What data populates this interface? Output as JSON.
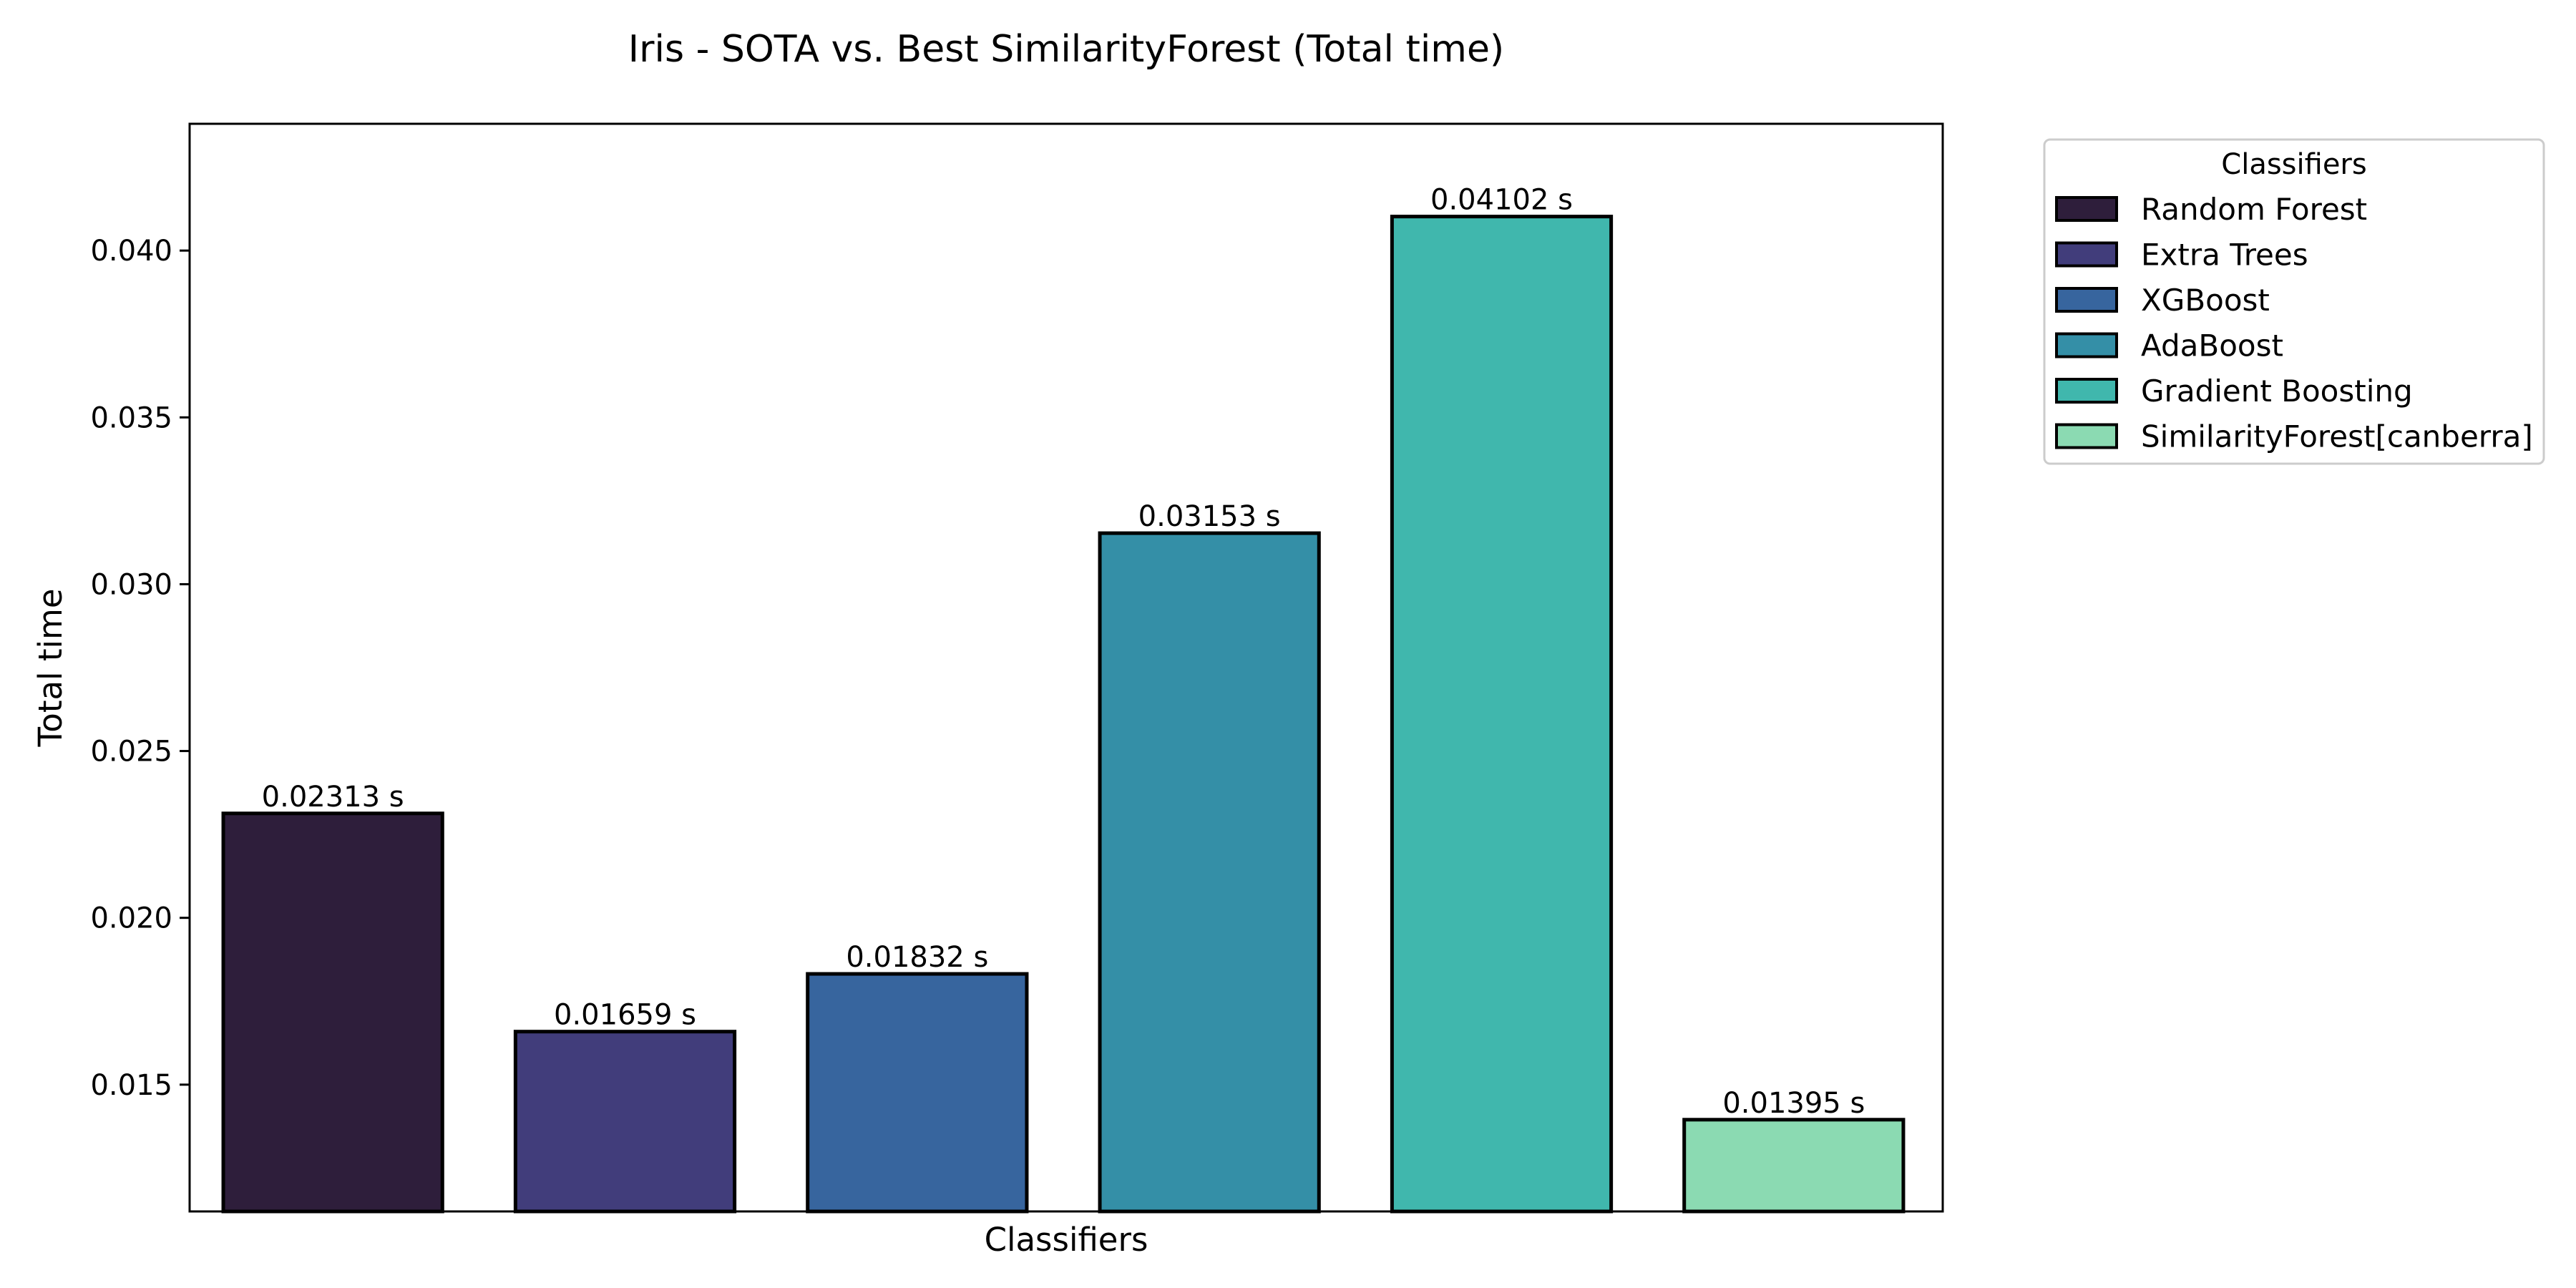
{
  "chart_data": {
    "type": "bar",
    "title": "Iris - SOTA vs. Best SimilarityForest (Total time)",
    "xlabel": "Classifiers",
    "ylabel": "Total time",
    "ylim": [
      0.0112,
      0.0438
    ],
    "yticks": [
      0.015,
      0.02,
      0.025,
      0.03,
      0.035,
      0.04
    ],
    "ytick_labels": [
      "0.015",
      "0.020",
      "0.025",
      "0.030",
      "0.035",
      "0.040"
    ],
    "grid": false,
    "categories": [
      "Random Forest",
      "Extra Trees",
      "XGBoost",
      "AdaBoost",
      "Gradient Boosting",
      "SimilarityForest[canberra]"
    ],
    "values": [
      0.02313,
      0.01659,
      0.01832,
      0.03153,
      0.04102,
      0.01395
    ],
    "data_labels": [
      "0.02313 s",
      "0.01659 s",
      "0.01832 s",
      "0.03153 s",
      "0.04102 s",
      "0.01395 s"
    ],
    "colors": [
      "#2e1e3b",
      "#413d7b",
      "#37659e",
      "#348fa7",
      "#40b7ad",
      "#8bdab2"
    ],
    "legend": {
      "title": "Classifiers",
      "placement": "outside-top-right",
      "entries": [
        "Random Forest",
        "Extra Trees",
        "XGBoost",
        "AdaBoost",
        "Gradient Boosting",
        "SimilarityForest[canberra]"
      ]
    }
  }
}
